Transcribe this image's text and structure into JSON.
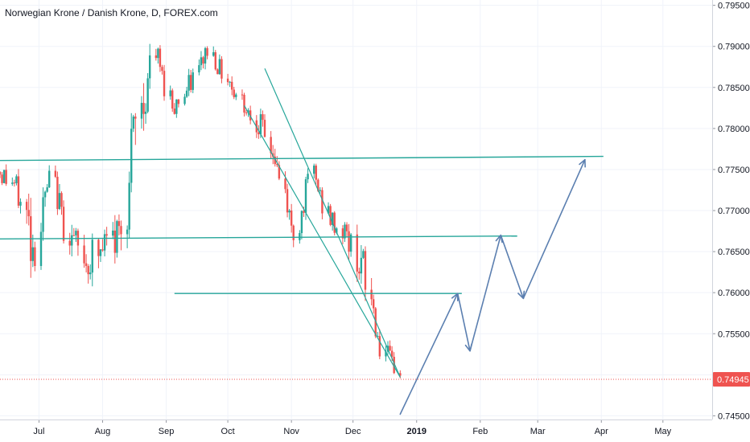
{
  "chart_data": {
    "type": "candlestick",
    "title": "Norwegian Krone / Danish Krone, D, FOREX.com",
    "ylim": [
      0.74455,
      0.79565
    ],
    "xlim": [
      "2018-06-12",
      "2019-05-25"
    ],
    "y_ticks": [
      "0.79500",
      "0.79000",
      "0.78500",
      "0.78000",
      "0.77500",
      "0.77000",
      "0.76500",
      "0.76000",
      "0.75500",
      "0.75000",
      "0.74500"
    ],
    "x_ticks": [
      {
        "date": "2018-07-01",
        "label": "Jul",
        "bold": false
      },
      {
        "date": "2018-08-01",
        "label": "Aug",
        "bold": false
      },
      {
        "date": "2018-09-01",
        "label": "Sep",
        "bold": false
      },
      {
        "date": "2018-10-01",
        "label": "Oct",
        "bold": false
      },
      {
        "date": "2018-11-01",
        "label": "Nov",
        "bold": false
      },
      {
        "date": "2018-12-01",
        "label": "Dec",
        "bold": false
      },
      {
        "date": "2019-01-01",
        "label": "2019",
        "bold": true
      },
      {
        "date": "2019-02-01",
        "label": "Feb",
        "bold": false
      },
      {
        "date": "2019-03-01",
        "label": "Mar",
        "bold": false
      },
      {
        "date": "2019-04-01",
        "label": "Apr",
        "bold": false
      },
      {
        "date": "2019-05-01",
        "label": "May",
        "bold": false
      }
    ],
    "last_price": "0.74945",
    "last_price_value": 0.74945,
    "colors": {
      "up": "#26a69a",
      "down": "#ef5350",
      "drawing": "#26a69a",
      "projection": "#5b7fb0",
      "price_tag": "#ef5350",
      "grid": "#f0f3fa",
      "axis_line": "#d1d4dc"
    },
    "grid": true,
    "price_path": [
      [
        0.7765,
        0.773
      ],
      [
        0.774,
        0.7718
      ],
      [
        0.77,
        0.7618
      ],
      [
        0.7752,
        0.7725
      ],
      [
        0.769,
        0.7652
      ],
      [
        0.766,
        0.7615
      ],
      [
        0.768,
        0.762
      ],
      [
        0.7705,
        0.7648
      ],
      [
        0.786,
        0.7765
      ],
      [
        0.7905,
        0.788
      ],
      [
        0.7835,
        0.7815
      ],
      [
        0.7865,
        0.7838
      ],
      [
        0.791,
        0.7885
      ],
      [
        0.7875,
        0.7855
      ],
      [
        0.7845,
        0.782
      ],
      [
        0.782,
        0.779
      ],
      [
        0.777,
        0.774
      ],
      [
        0.768,
        0.7655
      ],
      [
        0.776,
        0.7735
      ],
      [
        0.77,
        0.7678
      ],
      [
        0.7685,
        0.7655
      ],
      [
        0.765,
        0.76
      ],
      [
        0.7545,
        0.752
      ],
      [
        0.751,
        0.7495
      ]
    ],
    "horizontal_lines": [
      {
        "x1": "2018-06-12",
        "y1": 0.7761,
        "x2": "2019-04-02",
        "y2": 0.7766
      },
      {
        "x1": "2018-06-12",
        "y1": 0.76655,
        "x2": "2019-02-19",
        "y2": 0.7669
      },
      {
        "x1": "2018-09-05",
        "y1": 0.7599,
        "x2": "2019-01-23",
        "y2": 0.7599
      }
    ],
    "trend_lines": [
      {
        "x1": "2018-10-09",
        "y1": 0.7828,
        "x2": "2018-12-24",
        "y2": 0.7497
      },
      {
        "x1": "2018-10-19",
        "y1": 0.7873,
        "x2": "2018-12-24",
        "y2": 0.7497
      }
    ],
    "projection": [
      {
        "x": "2018-12-24",
        "y": 0.7452
      },
      {
        "x": "2019-01-21",
        "y": 0.7599
      },
      {
        "x": "2019-01-27",
        "y": 0.7529
      },
      {
        "x": "2019-02-11",
        "y": 0.767
      },
      {
        "x": "2019-02-22",
        "y": 0.7593
      },
      {
        "x": "2019-03-24",
        "y": 0.7762
      }
    ]
  }
}
